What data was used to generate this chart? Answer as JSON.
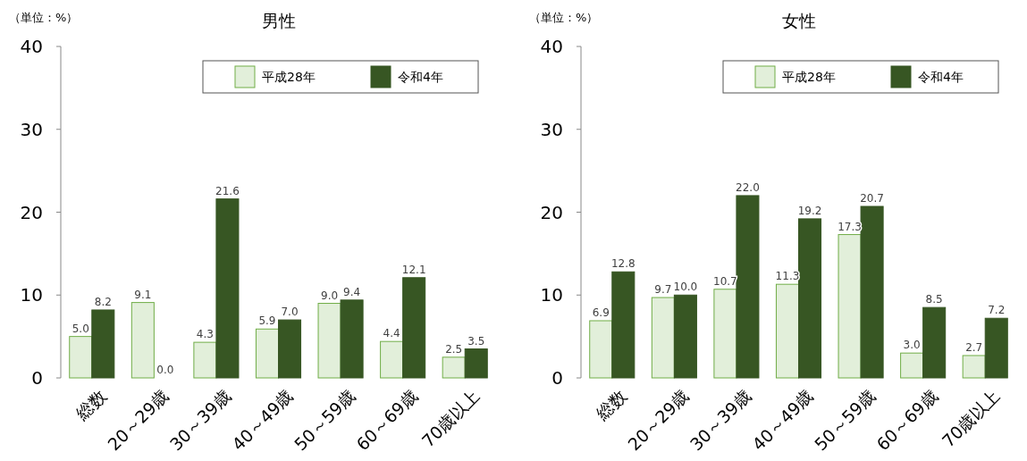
{
  "chart_data": [
    {
      "type": "bar",
      "title": "男性",
      "ylabel": "（単位：%）",
      "categories": [
        "総数",
        "20～29歳",
        "30～39歳",
        "40～49歳",
        "50～59歳",
        "60～69歳",
        "70歳以上"
      ],
      "ylim": [
        0,
        40
      ],
      "yticks": [
        0,
        10,
        20,
        30,
        40
      ],
      "legend": "top right",
      "grid": false,
      "series": [
        {
          "name": "平成28年",
          "color": "#e2efda",
          "values": [
            5.0,
            9.1,
            4.3,
            5.9,
            9.0,
            4.4,
            2.5
          ],
          "value_labels": [
            "5.0",
            "9.1",
            "4.3",
            "5.9",
            "9.0",
            "4.4",
            "2.5"
          ]
        },
        {
          "name": "令和4年",
          "color": "#375623",
          "values": [
            8.2,
            0.0,
            21.6,
            7.0,
            9.4,
            12.1,
            3.5
          ],
          "value_labels": [
            "8.2",
            "0.0",
            "21.6",
            "7.0",
            "9.4",
            "12.1",
            "3.5"
          ]
        }
      ]
    },
    {
      "type": "bar",
      "title": "女性",
      "ylabel": "（単位：%）",
      "categories": [
        "総数",
        "20～29歳",
        "30～39歳",
        "40～49歳",
        "50～59歳",
        "60～69歳",
        "70歳以上"
      ],
      "ylim": [
        0,
        40
      ],
      "yticks": [
        0,
        10,
        20,
        30,
        40
      ],
      "legend": "top right",
      "grid": false,
      "series": [
        {
          "name": "平成28年",
          "color": "#e2efda",
          "values": [
            6.9,
            9.7,
            10.7,
            11.3,
            17.3,
            3.0,
            2.7
          ],
          "value_labels": [
            "6.9",
            "9.7",
            "10.7",
            "11.3",
            "17.3",
            "3.0",
            "2.7"
          ]
        },
        {
          "name": "令和4年",
          "color": "#375623",
          "values": [
            12.8,
            10.0,
            22.0,
            19.2,
            20.7,
            8.5,
            7.2
          ],
          "value_labels": [
            "12.8",
            "10.0",
            "22.0",
            "19.2",
            "20.7",
            "8.5",
            "7.2"
          ]
        }
      ]
    }
  ]
}
